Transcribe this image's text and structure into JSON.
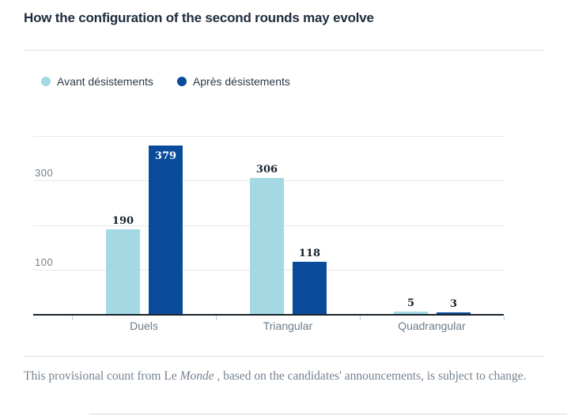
{
  "title": "How the configuration of the second rounds may evolve",
  "legend": [
    {
      "label": "Avant désistements",
      "color": "#a4d9e4"
    },
    {
      "label": "Après désistements",
      "color": "#0a4c9b"
    }
  ],
  "footer": {
    "prefix": "This provisional count from Le ",
    "italic": "Monde",
    "suffix": " , based on the candidates' announcements, is subject to change."
  },
  "chart_data": {
    "type": "bar",
    "categories": [
      "Duels",
      "Triangular",
      "Quadrangular"
    ],
    "series": [
      {
        "name": "Avant désistements",
        "color": "#a4d9e4",
        "values": [
          190,
          306,
          5
        ]
      },
      {
        "name": "Après désistements",
        "color": "#0a4c9b",
        "values": [
          379,
          118,
          3
        ]
      }
    ],
    "ylim": [
      0,
      400
    ],
    "yticks": [
      {
        "value": 100,
        "label": "100"
      },
      {
        "value": 300,
        "label": "300"
      }
    ],
    "gridlines": [
      100,
      200,
      300,
      400
    ],
    "grid": true,
    "legend_position": "top",
    "value_labels": true
  }
}
